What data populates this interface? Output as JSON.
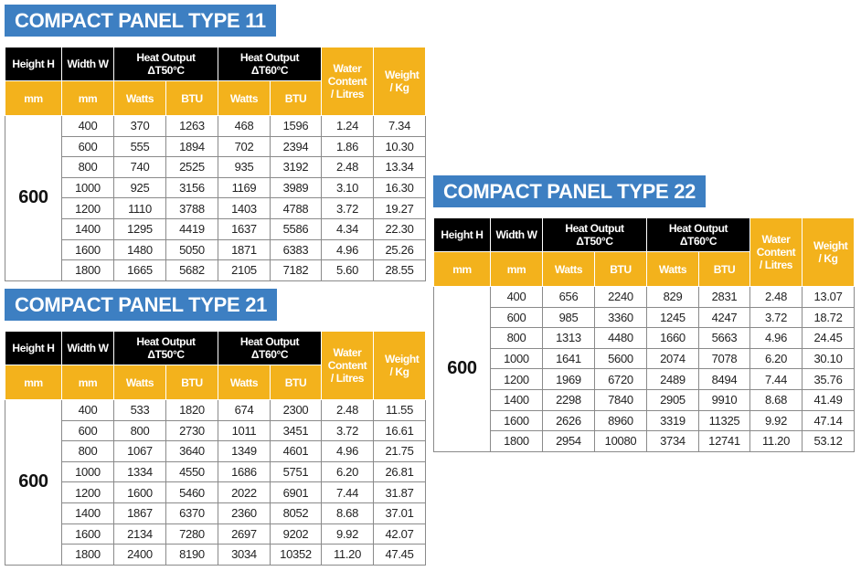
{
  "colors": {
    "banner": "#3d7fc2",
    "header_dark": "#000000",
    "header_accent": "#f3b21c"
  },
  "headers": {
    "height": "Height H",
    "width": "Width W",
    "heat50": "Heat Output ΔT50°C",
    "heat60": "Heat Output ΔT60°C",
    "water": "Water Content / Litres",
    "weight": "Weight / Kg",
    "mm_h": "mm",
    "mm_w": "mm",
    "watts": "Watts",
    "btu": "BTU"
  },
  "tables": [
    {
      "title": "COMPACT PANEL TYPE 11",
      "height": "600",
      "rows": [
        [
          "400",
          "370",
          "1263",
          "468",
          "1596",
          "1.24",
          "7.34"
        ],
        [
          "600",
          "555",
          "1894",
          "702",
          "2394",
          "1.86",
          "10.30"
        ],
        [
          "800",
          "740",
          "2525",
          "935",
          "3192",
          "2.48",
          "13.34"
        ],
        [
          "1000",
          "925",
          "3156",
          "1169",
          "3989",
          "3.10",
          "16.30"
        ],
        [
          "1200",
          "1110",
          "3788",
          "1403",
          "4788",
          "3.72",
          "19.27"
        ],
        [
          "1400",
          "1295",
          "4419",
          "1637",
          "5586",
          "4.34",
          "22.30"
        ],
        [
          "1600",
          "1480",
          "5050",
          "1871",
          "6383",
          "4.96",
          "25.26"
        ],
        [
          "1800",
          "1665",
          "5682",
          "2105",
          "7182",
          "5.60",
          "28.55"
        ]
      ]
    },
    {
      "title": "COMPACT PANEL TYPE 21",
      "height": "600",
      "rows": [
        [
          "400",
          "533",
          "1820",
          "674",
          "2300",
          "2.48",
          "11.55"
        ],
        [
          "600",
          "800",
          "2730",
          "1011",
          "3451",
          "3.72",
          "16.61"
        ],
        [
          "800",
          "1067",
          "3640",
          "1349",
          "4601",
          "4.96",
          "21.75"
        ],
        [
          "1000",
          "1334",
          "4550",
          "1686",
          "5751",
          "6.20",
          "26.81"
        ],
        [
          "1200",
          "1600",
          "5460",
          "2022",
          "6901",
          "7.44",
          "31.87"
        ],
        [
          "1400",
          "1867",
          "6370",
          "2360",
          "8052",
          "8.68",
          "37.01"
        ],
        [
          "1600",
          "2134",
          "7280",
          "2697",
          "9202",
          "9.92",
          "42.07"
        ],
        [
          "1800",
          "2400",
          "8190",
          "3034",
          "10352",
          "11.20",
          "47.45"
        ]
      ]
    },
    {
      "title": "COMPACT PANEL TYPE 22",
      "height": "600",
      "rows": [
        [
          "400",
          "656",
          "2240",
          "829",
          "2831",
          "2.48",
          "13.07"
        ],
        [
          "600",
          "985",
          "3360",
          "1245",
          "4247",
          "3.72",
          "18.72"
        ],
        [
          "800",
          "1313",
          "4480",
          "1660",
          "5663",
          "4.96",
          "24.45"
        ],
        [
          "1000",
          "1641",
          "5600",
          "2074",
          "7078",
          "6.20",
          "30.10"
        ],
        [
          "1200",
          "1969",
          "6720",
          "2489",
          "8494",
          "7.44",
          "35.76"
        ],
        [
          "1400",
          "2298",
          "7840",
          "2905",
          "9910",
          "8.68",
          "41.49"
        ],
        [
          "1600",
          "2626",
          "8960",
          "3319",
          "11325",
          "9.92",
          "47.14"
        ],
        [
          "1800",
          "2954",
          "10080",
          "3734",
          "12741",
          "11.20",
          "53.12"
        ]
      ]
    }
  ]
}
